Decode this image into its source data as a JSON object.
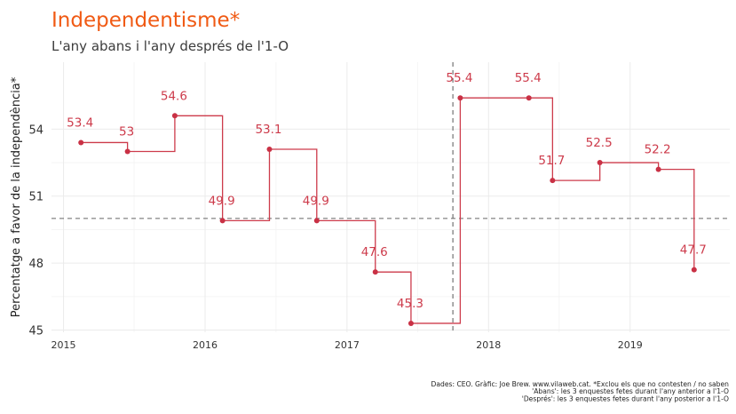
{
  "chart_data": {
    "type": "line",
    "step": true,
    "title": "Independentisme*",
    "subtitle": "L'any abans i l'any després de l'1-O",
    "xlabel": "",
    "ylabel": "Percentatge a favor de la independència*",
    "x_ticks": [
      "2015",
      "2016",
      "2017",
      "2018",
      "2019"
    ],
    "y_ticks": [
      "45",
      "48",
      "51",
      "54"
    ],
    "xlim": [
      "2014-12-01",
      "2019-09-15"
    ],
    "ylim": [
      44.9,
      57.0
    ],
    "grid": true,
    "series": [
      {
        "x": [
          "2015-02-15",
          "2015-06-15",
          "2015-10-15",
          "2016-02-15",
          "2016-06-15",
          "2016-10-15",
          "2017-03-15",
          "2017-06-15",
          "2017-10-20",
          "2018-04-15",
          "2018-06-15",
          "2018-10-15",
          "2019-03-15",
          "2019-06-15"
        ],
        "values": [
          53.4,
          53.0,
          54.6,
          49.9,
          53.1,
          49.9,
          47.6,
          45.3,
          55.4,
          55.4,
          51.7,
          52.5,
          52.2,
          47.7
        ],
        "labels": [
          "53.4",
          "53",
          "54.6",
          "49.9",
          "53.1",
          "49.9",
          "47.6",
          "45.3",
          "55.4",
          "55.4",
          "51.7",
          "52.5",
          "52.2",
          "47.7"
        ]
      }
    ],
    "reference_lines": {
      "horizontal_y": 50,
      "vertical_x": "2017-10-01"
    },
    "caption_lines": [
      "Dades: CEO. Gràfic: Joe Brew. www.vilaweb.cat. *Exclou els que no contesten / no saben",
      "'Abans': les 3 enquestes fetes durant l'any anterior a l'1-O",
      "'Després': les 3 enquestes fetes durant l'any posterior a l'1-O"
    ],
    "colors": {
      "title": "#f05a14",
      "line": "#cd3b4b",
      "point": "#c93145",
      "label": "#cd3b4b",
      "grid": "#ebebeb",
      "reference": "#666666"
    }
  }
}
